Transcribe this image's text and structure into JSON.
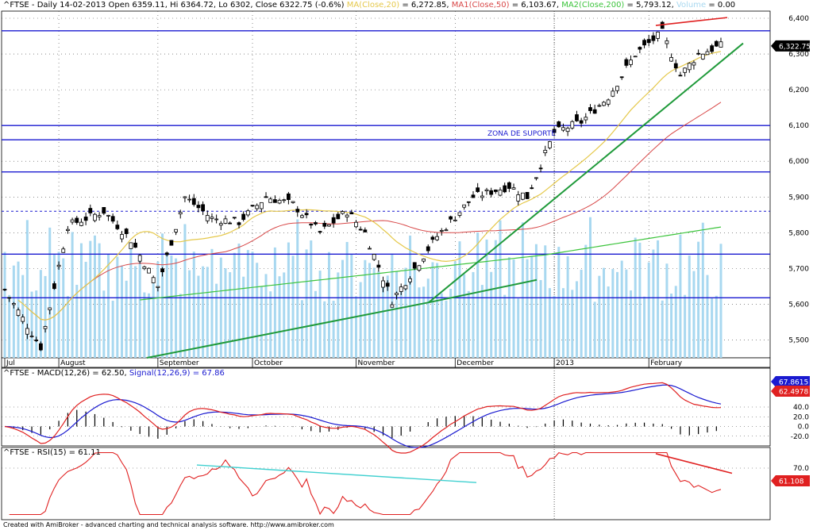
{
  "header": {
    "main": [
      {
        "text": "^FTSE - Daily 14-02-2013 Open 6359.11, Hi 6364.72, Lo 6302, Close 6322.75 (-0.6%)",
        "color": "#000000"
      },
      {
        "text": "MA(Close,20)",
        "color": "#e5c84a"
      },
      {
        "text": "= 6,272.85,",
        "color": "#000000"
      },
      {
        "text": "MA1(Close,50)",
        "color": "#d84848"
      },
      {
        "text": "= 6,103.67,",
        "color": "#000000"
      },
      {
        "text": "MA2(Close,200)",
        "color": "#3cc43c"
      },
      {
        "text": "= 5,793.12,",
        "color": "#000000"
      },
      {
        "text": "Volume",
        "color": "#a8d8f0"
      },
      {
        "text": "= 0.00",
        "color": "#000000"
      }
    ],
    "macd": [
      {
        "text": "^FTSE - MACD(12,26) = 62.50,",
        "color": "#000000"
      },
      {
        "text": "Signal(12,26,9) = 67.86",
        "color": "#1a1ad0"
      }
    ],
    "rsi": [
      {
        "text": "^FTSE - RSI(15) = 61.11",
        "color": "#000000"
      }
    ]
  },
  "annotations": {
    "support_zone": "ZONA DE SUPORTE"
  },
  "credit": "Created with AmiBroker - advanced charting and technical analysis software. http://www.amibroker.com",
  "colors": {
    "up": "#ffffff",
    "down": "#000000",
    "ma20": "#e5c84a",
    "ma50": "#d84848",
    "ma200": "#3cc43c",
    "volume": "#a8d8f0",
    "level_line": "#1a1ad0",
    "trend_line": "#1f9a3a",
    "resistance_line": "#e02020",
    "macd_line": "#e02020",
    "signal_line": "#1a1ad0",
    "rsi_line": "#e02020",
    "rsi_trend": "#40d0d0",
    "price_badge": "#000000",
    "macd_badge": "#1a1ad0",
    "signal_badge": "#e02020"
  },
  "chart_data": [
    {
      "type": "candlestick",
      "title": "^FTSE - Daily 14-02-2013",
      "ylim": [
        5450,
        6420
      ],
      "y_ticks": [
        "6,400",
        "6,300",
        "6,200",
        "6,100",
        "6,000",
        "5,900",
        "5,800",
        "5,700",
        "5,600",
        "5,500"
      ],
      "x_labels": [
        "Jul",
        "August",
        "September",
        "October",
        "November",
        "December",
        "2013",
        "February"
      ],
      "last_close_label": "6,322.75",
      "key_closes": [
        {
          "date": "2012-07",
          "close": 5640
        },
        {
          "date": "2012-07-late",
          "close": 5490
        },
        {
          "date": "2012-08",
          "close": 5860
        },
        {
          "date": "2012-09-early",
          "close": 5650
        },
        {
          "date": "2012-09",
          "close": 5870
        },
        {
          "date": "2012-10",
          "close": 5820
        },
        {
          "date": "2012-11-mid",
          "close": 5610
        },
        {
          "date": "2012-12",
          "close": 5930
        },
        {
          "date": "2013-01",
          "close": 6120
        },
        {
          "date": "2013-02",
          "close": 6360
        },
        {
          "date": "2013-02-14",
          "close": 6322.75
        }
      ],
      "horizontal_levels": [
        6365,
        6100,
        6060,
        5970,
        5860,
        5740,
        5618
      ],
      "indicators": {
        "ma20": 6272.85,
        "ma50": 6103.67,
        "ma200": 5793.12,
        "volume": 0.0
      }
    },
    {
      "type": "line",
      "title": "^FTSE - MACD(12,26)",
      "ylim": [
        -40,
        120
      ],
      "y_ticks": [
        "40.0",
        "20.0",
        "0.0",
        "-20.0"
      ],
      "series": [
        {
          "name": "MACD(12,26)",
          "last": 62.5
        },
        {
          "name": "Signal(12,26,9)",
          "last": 67.86
        }
      ],
      "badges": [
        "67.8615",
        "62.4978"
      ]
    },
    {
      "type": "line",
      "title": "^FTSE - RSI(15)",
      "ylim": [
        20,
        90
      ],
      "y_ticks": [
        "70.0"
      ],
      "series": [
        {
          "name": "RSI(15)",
          "last": 61.11
        }
      ],
      "badges": [
        "61.108"
      ]
    }
  ]
}
